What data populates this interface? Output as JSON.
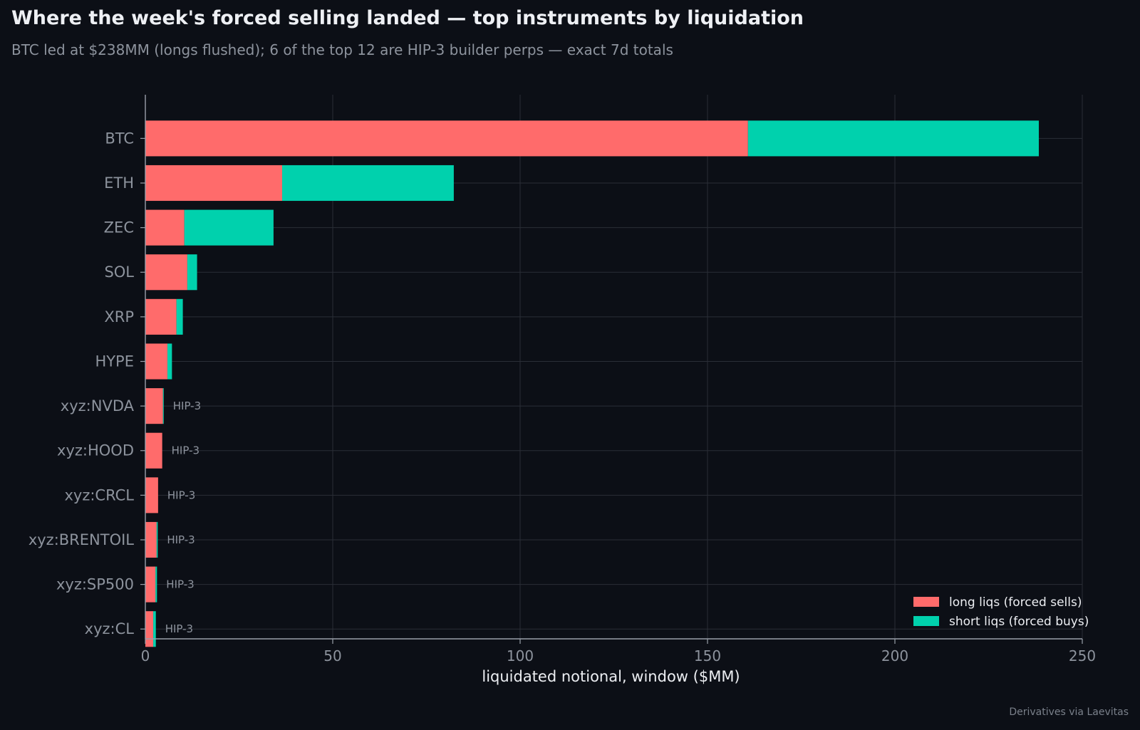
{
  "title": "Where the week's forced selling landed — top instruments by liquidation",
  "subtitle": "BTC led at $238MM (longs flushed); 6 of the top 12 are HIP-3 builder perps — exact 7d totals",
  "source": "Derivatives via Laevitas",
  "colors": {
    "background": "#0c0f16",
    "long": "#ff6b6b",
    "short": "#00d1ad",
    "grid": "#2a2e37",
    "axis": "#9aa0aa",
    "tick_text": "#8d939d",
    "label_text": "#eceef2"
  },
  "chart_data": {
    "type": "bar",
    "orientation": "horizontal",
    "stacked": true,
    "categories": [
      "BTC",
      "ETH",
      "ZEC",
      "SOL",
      "XRP",
      "HYPE",
      "xyz:NVDA",
      "xyz:HOOD",
      "xyz:CRCL",
      "xyz:BRENTOIL",
      "xyz:SP500",
      "xyz:CL"
    ],
    "series": [
      {
        "name": "long liqs (forced sells)",
        "values": [
          160.8,
          36.5,
          10.4,
          11.2,
          8.3,
          5.9,
          4.7,
          4.5,
          3.4,
          3.0,
          2.7,
          2.1
        ]
      },
      {
        "name": "short liqs (forced buys)",
        "values": [
          77.6,
          45.8,
          23.8,
          2.6,
          1.7,
          1.2,
          0.2,
          0.0,
          0.0,
          0.3,
          0.4,
          0.7
        ]
      }
    ],
    "annotations": [
      {
        "category": "xyz:NVDA",
        "text": "HIP-3"
      },
      {
        "category": "xyz:HOOD",
        "text": "HIP-3"
      },
      {
        "category": "xyz:CRCL",
        "text": "HIP-3"
      },
      {
        "category": "xyz:BRENTOIL",
        "text": "HIP-3"
      },
      {
        "category": "xyz:SP500",
        "text": "HIP-3"
      },
      {
        "category": "xyz:CL",
        "text": "HIP-3"
      }
    ],
    "xlabel": "liquidated notional, window ($MM)",
    "ylabel": "",
    "xlim": [
      0,
      250
    ],
    "xticks": [
      0,
      50,
      100,
      150,
      200,
      250
    ],
    "grid": true,
    "legend_position": "bottom-right"
  }
}
